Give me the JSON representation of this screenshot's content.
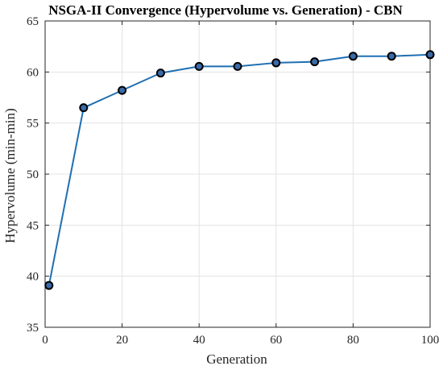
{
  "chart_data": {
    "type": "line",
    "title": "NSGA-II Convergence (Hypervolume vs. Generation) - CBN",
    "xlabel": "Generation",
    "ylabel": "Hypervolume (min-min)",
    "xlim": [
      0,
      100
    ],
    "ylim": [
      35,
      65
    ],
    "xticks": [
      0,
      20,
      40,
      60,
      80,
      100
    ],
    "yticks": [
      35,
      40,
      45,
      50,
      55,
      60,
      65
    ],
    "grid": true,
    "series": [
      {
        "color": "#1f6fb2",
        "marker_fill": "#3a6aa8",
        "points": [
          {
            "x": 1,
            "y": 39.1
          },
          {
            "x": 10,
            "y": 56.5
          },
          {
            "x": 20,
            "y": 58.2
          },
          {
            "x": 30,
            "y": 59.9
          },
          {
            "x": 40,
            "y": 60.55
          },
          {
            "x": 50,
            "y": 60.55
          },
          {
            "x": 60,
            "y": 60.9
          },
          {
            "x": 70,
            "y": 61.0
          },
          {
            "x": 80,
            "y": 61.55
          },
          {
            "x": 90,
            "y": 61.55
          },
          {
            "x": 100,
            "y": 61.7
          }
        ]
      }
    ]
  }
}
